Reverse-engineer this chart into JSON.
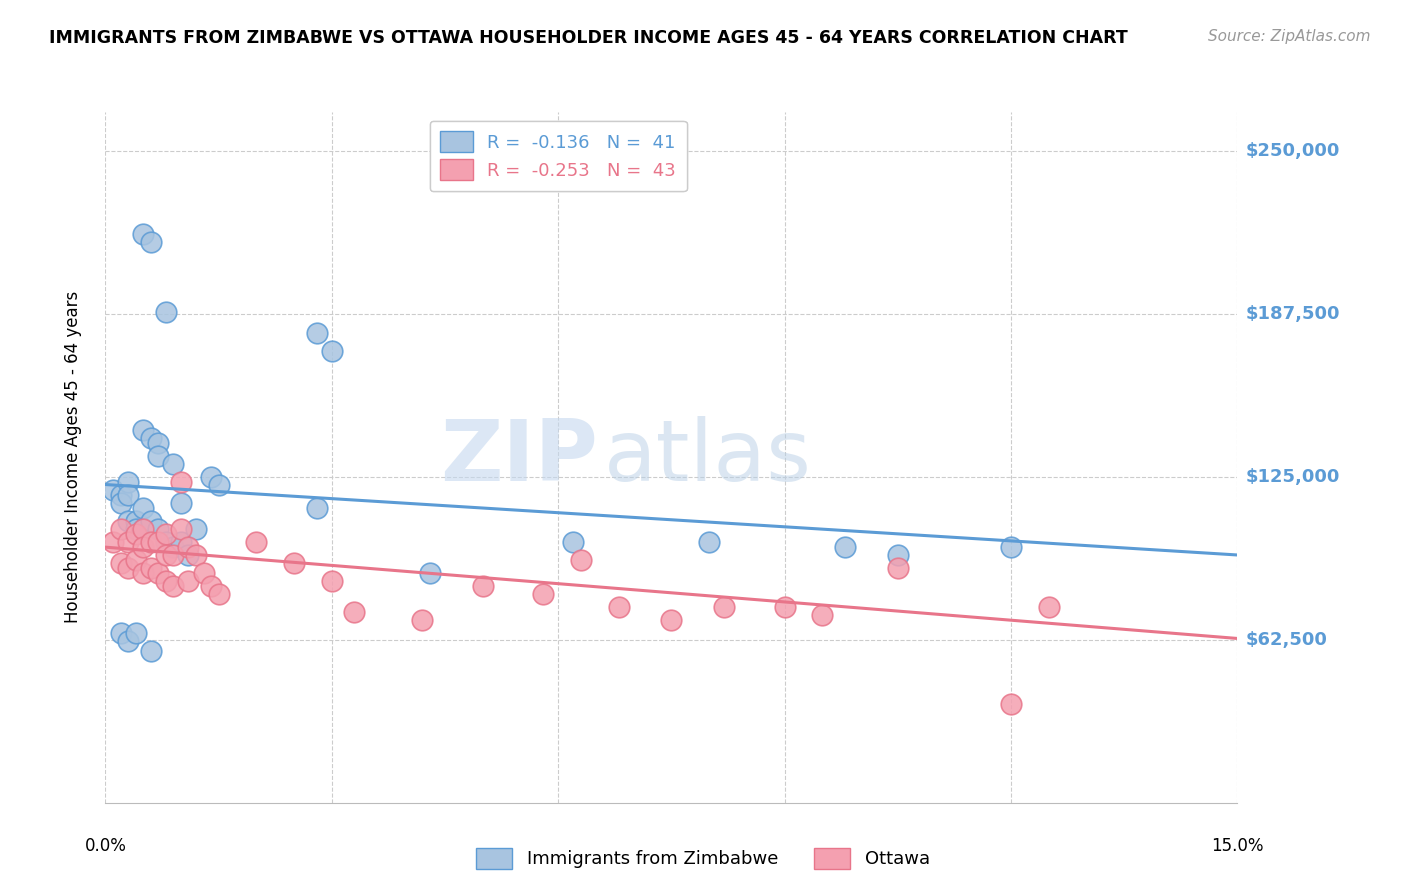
{
  "title": "IMMIGRANTS FROM ZIMBABWE VS OTTAWA HOUSEHOLDER INCOME AGES 45 - 64 YEARS CORRELATION CHART",
  "source": "Source: ZipAtlas.com",
  "ylabel": "Householder Income Ages 45 - 64 years",
  "xmin": 0.0,
  "xmax": 0.15,
  "ymin": 0,
  "ymax": 265000,
  "yticks": [
    62500,
    125000,
    187500,
    250000
  ],
  "ytick_labels": [
    "$62,500",
    "$125,000",
    "$187,500",
    "$250,000"
  ],
  "blue_scatter_x": [
    0.005,
    0.006,
    0.008,
    0.028,
    0.03,
    0.005,
    0.006,
    0.007,
    0.007,
    0.009,
    0.01,
    0.001,
    0.002,
    0.002,
    0.003,
    0.003,
    0.003,
    0.004,
    0.004,
    0.005,
    0.005,
    0.006,
    0.007,
    0.008,
    0.009,
    0.01,
    0.011,
    0.012,
    0.014,
    0.015,
    0.028,
    0.043,
    0.062,
    0.08,
    0.098,
    0.105,
    0.12,
    0.002,
    0.003,
    0.004,
    0.006
  ],
  "blue_scatter_y": [
    218000,
    215000,
    188000,
    180000,
    173000,
    143000,
    140000,
    138000,
    133000,
    130000,
    115000,
    120000,
    118000,
    115000,
    123000,
    118000,
    108000,
    108000,
    105000,
    113000,
    105000,
    108000,
    105000,
    100000,
    98000,
    100000,
    95000,
    105000,
    125000,
    122000,
    113000,
    88000,
    100000,
    100000,
    98000,
    95000,
    98000,
    65000,
    62000,
    65000,
    58000
  ],
  "pink_scatter_x": [
    0.001,
    0.002,
    0.002,
    0.003,
    0.003,
    0.004,
    0.004,
    0.005,
    0.005,
    0.005,
    0.006,
    0.006,
    0.007,
    0.007,
    0.008,
    0.008,
    0.008,
    0.009,
    0.009,
    0.01,
    0.01,
    0.011,
    0.011,
    0.012,
    0.013,
    0.014,
    0.015,
    0.02,
    0.025,
    0.03,
    0.033,
    0.042,
    0.05,
    0.058,
    0.063,
    0.068,
    0.075,
    0.082,
    0.09,
    0.095,
    0.105,
    0.125,
    0.12
  ],
  "pink_scatter_y": [
    100000,
    105000,
    92000,
    100000,
    90000,
    103000,
    93000,
    105000,
    98000,
    88000,
    100000,
    90000,
    100000,
    88000,
    103000,
    95000,
    85000,
    95000,
    83000,
    123000,
    105000,
    98000,
    85000,
    95000,
    88000,
    83000,
    80000,
    100000,
    92000,
    85000,
    73000,
    70000,
    83000,
    80000,
    93000,
    75000,
    70000,
    75000,
    75000,
    72000,
    90000,
    75000,
    38000
  ],
  "blue_line_x": [
    0.0,
    0.15
  ],
  "blue_line_y": [
    122000,
    95000
  ],
  "pink_line_x": [
    0.0,
    0.15
  ],
  "pink_line_y": [
    98000,
    63000
  ],
  "blue_color": "#5b9bd5",
  "pink_color": "#e8758a",
  "blue_scatter_color": "#a8c4e0",
  "pink_scatter_color": "#f4a0b0",
  "watermark_zip": "ZIP",
  "watermark_atlas": "atlas",
  "background_color": "#ffffff",
  "grid_color": "#cccccc",
  "title_fontsize": 12.5,
  "source_fontsize": 11,
  "tick_label_fontsize": 13,
  "legend1_r1": "R = ",
  "legend1_v1": "-0.136",
  "legend1_n1": "  N = ",
  "legend1_nv1": "41",
  "legend1_r2": "R = ",
  "legend1_v2": "-0.253",
  "legend1_n2": "  N = ",
  "legend1_nv2": "43"
}
